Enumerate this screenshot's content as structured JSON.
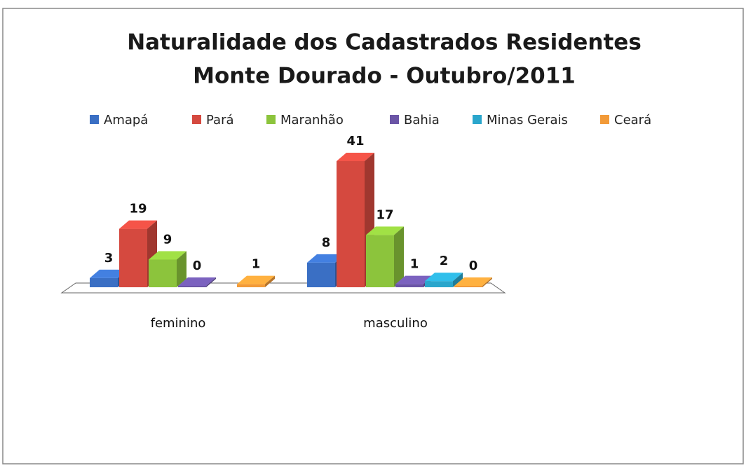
{
  "chart_data": {
    "type": "bar3d",
    "title": "Naturalidade dos Cadastrados Residentes",
    "subtitle": "Monte Dourado - Outubro/2011",
    "categories": [
      "feminino",
      "masculino"
    ],
    "series": [
      {
        "name": "Amapá",
        "color": "#3a6fc4",
        "values": [
          3,
          8
        ]
      },
      {
        "name": "Pará",
        "color": "#d5493f",
        "values": [
          19,
          41
        ]
      },
      {
        "name": "Maranhão",
        "color": "#8cc43c",
        "values": [
          9,
          17
        ]
      },
      {
        "name": "Bahia",
        "color": "#6b55a6",
        "values": [
          0,
          1
        ]
      },
      {
        "name": "Minas Gerais",
        "color": "#2aa6cc",
        "values": [
          null,
          2
        ]
      },
      {
        "name": "Ceará",
        "color": "#f29a38",
        "values": [
          1,
          0
        ]
      }
    ],
    "legend": "top"
  }
}
